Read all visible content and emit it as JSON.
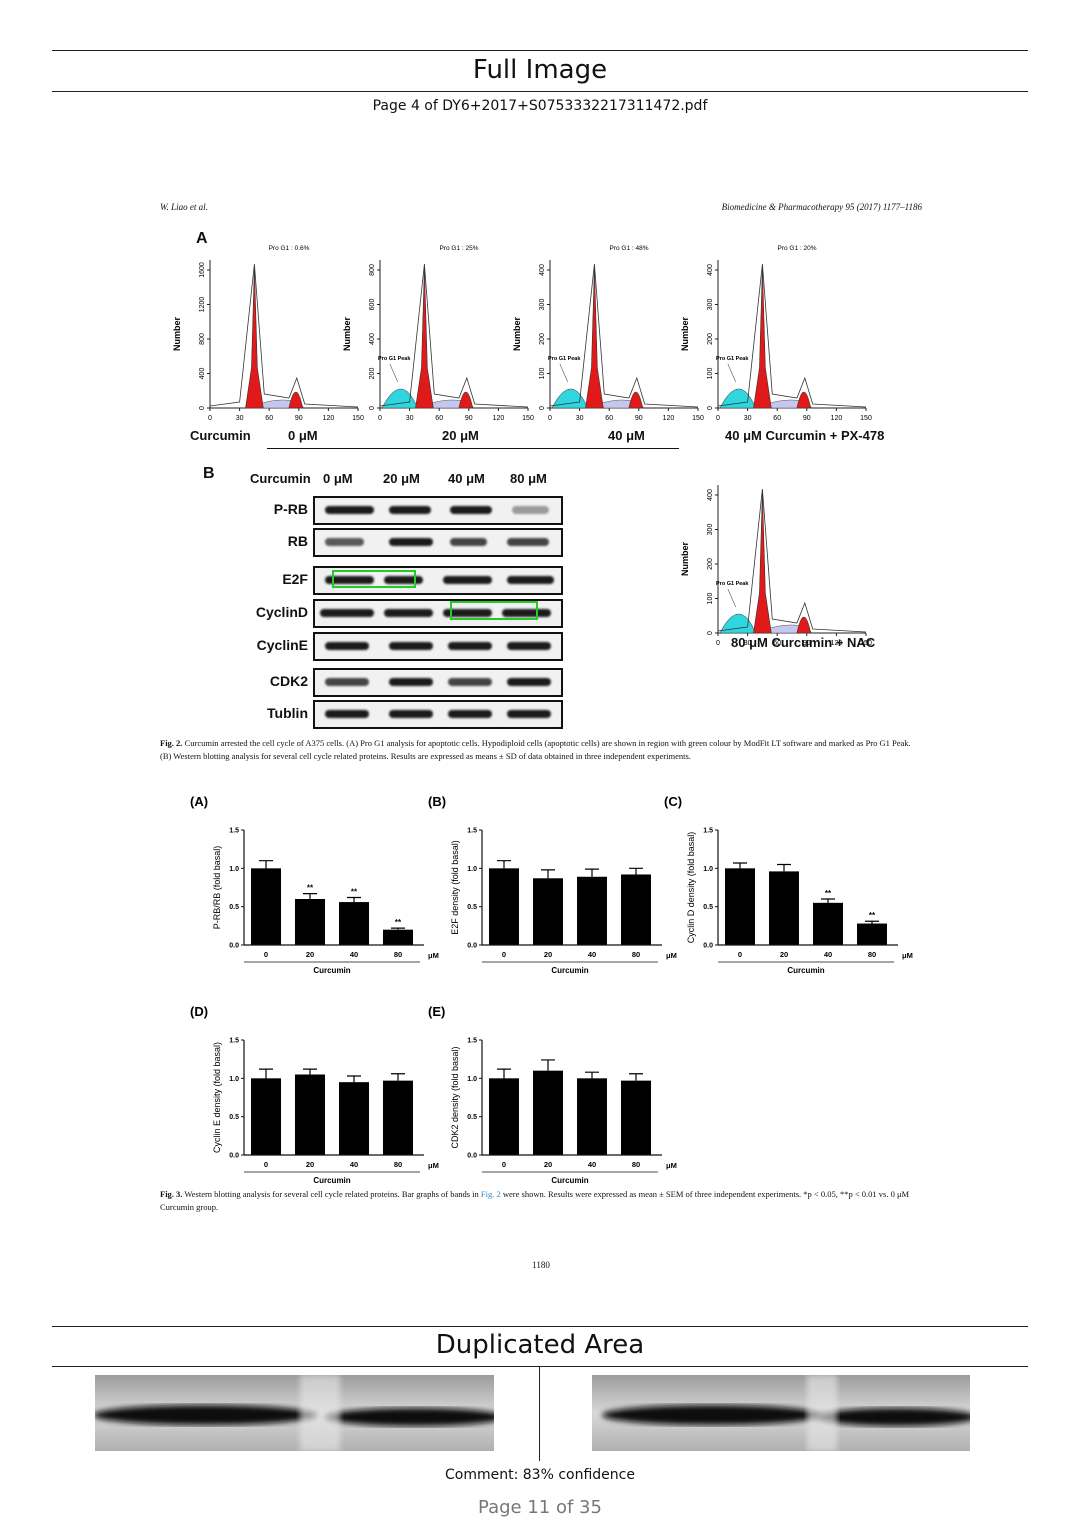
{
  "header": {
    "title": "Full Image",
    "subtitle": "Page 4 of DY6+2017+S0753332217311472.pdf"
  },
  "paper": {
    "running_head_left": "W. Liao et al.",
    "running_head_right": "Biomedicine & Pharmacotherapy 95 (2017) 1177–1186",
    "page_number": "1180",
    "fig2": {
      "panel_a_label": "A",
      "panel_b_label": "B",
      "curcumin_label": "Curcumin",
      "histograms": [
        {
          "pro_g1": "Pro G1 : 0.6%",
          "conc": "0 μM",
          "yticks": [
            "0",
            "400",
            "800",
            "1200",
            "1600"
          ],
          "has_peak": false
        },
        {
          "pro_g1": "Pro G1 : 25%",
          "conc": "20 μM",
          "yticks": [
            "0",
            "200",
            "400",
            "600",
            "800"
          ],
          "has_peak": true
        },
        {
          "pro_g1": "Pro G1 : 48%",
          "conc": "40 μM",
          "yticks": [
            "0",
            "100",
            "200",
            "300",
            "400"
          ],
          "has_peak": true
        },
        {
          "pro_g1": "Pro G1 : 20%",
          "conc": "40 μM Curcumin + PX-478",
          "yticks": [
            "0",
            "100",
            "200",
            "300",
            "400"
          ],
          "has_peak": true
        }
      ],
      "hist_nac": {
        "conc": "80 μM Curcumin + NAC",
        "yticks": [
          "0",
          "100",
          "200",
          "300",
          "400"
        ]
      },
      "hist_axis_label": "Number",
      "pro_g1_peak_label": "Pro G1 Peak",
      "xticks": [
        "0",
        "30",
        "60",
        "90",
        "120",
        "150"
      ],
      "blot_header": [
        "Curcumin",
        "0 μM",
        "20 μM",
        "40 μM",
        "80 μM"
      ],
      "blot_rows": [
        "P-RB",
        "RB",
        "E2F",
        "CyclinD",
        "CyclinE",
        "CDK2",
        "Tublin"
      ],
      "caption_bold": "Fig. 2.",
      "caption": "Curcumin arrested the cell cycle of A375 cells. (A) Pro G1 analysis for apoptotic cells. Hypodiploid cells (apoptotic cells) are shown in region with green colour by ModFit LT software and marked as Pro G1 Peak. (B) Western blotting analysis for several cell cycle related proteins. Results are expressed as means ± SD of data obtained in three independent experiments."
    },
    "fig3": {
      "caption_bold": "Fig. 3.",
      "caption_a": "Western blotting analysis for several cell cycle related proteins. Bar graphs of bands in ",
      "caption_link": "Fig. 2",
      "caption_b": " were shown. Results were expressed as mean ± SEM of three independent experiments. *p < 0.05, **p < 0.01 vs. 0 μM Curcumin group."
    }
  },
  "chart_data": [
    {
      "type": "bar",
      "panel": "(A)",
      "ylabel": "P-RB/RB (fold basal)",
      "xlabel": "Curcumin",
      "unit": "μM",
      "categories": [
        "0",
        "20",
        "40",
        "80"
      ],
      "values": [
        1.0,
        0.6,
        0.56,
        0.2
      ],
      "errors": [
        0.1,
        0.07,
        0.06,
        0.02
      ],
      "annotations": [
        "",
        "**",
        "**",
        "**"
      ],
      "ylim": [
        0,
        1.5
      ],
      "yticks": [
        "0.0",
        "0.5",
        "1.0",
        "1.5"
      ]
    },
    {
      "type": "bar",
      "panel": "(B)",
      "ylabel": "E2F density (fold basal)",
      "xlabel": "Curcumin",
      "unit": "μM",
      "categories": [
        "0",
        "20",
        "40",
        "80"
      ],
      "values": [
        1.0,
        0.87,
        0.89,
        0.92
      ],
      "errors": [
        0.1,
        0.11,
        0.1,
        0.08
      ],
      "annotations": [
        "",
        "",
        "",
        ""
      ],
      "ylim": [
        0,
        1.5
      ],
      "yticks": [
        "0.0",
        "0.5",
        "1.0",
        "1.5"
      ]
    },
    {
      "type": "bar",
      "panel": "(C)",
      "ylabel": "Cyclin D density (fold basal)",
      "xlabel": "Curcumin",
      "unit": "μM",
      "categories": [
        "0",
        "20",
        "40",
        "80"
      ],
      "values": [
        1.0,
        0.96,
        0.55,
        0.28
      ],
      "errors": [
        0.07,
        0.09,
        0.05,
        0.03
      ],
      "annotations": [
        "",
        "",
        "**",
        "**"
      ],
      "ylim": [
        0,
        1.5
      ],
      "yticks": [
        "0.0",
        "0.5",
        "1.0",
        "1.5"
      ]
    },
    {
      "type": "bar",
      "panel": "(D)",
      "ylabel": "Cyclin E density (fold basal)",
      "xlabel": "Curcumin",
      "unit": "μM",
      "categories": [
        "0",
        "20",
        "40",
        "80"
      ],
      "values": [
        1.0,
        1.05,
        0.95,
        0.97
      ],
      "errors": [
        0.12,
        0.07,
        0.08,
        0.09
      ],
      "annotations": [
        "",
        "",
        "",
        ""
      ],
      "ylim": [
        0,
        1.5
      ],
      "yticks": [
        "0.0",
        "0.5",
        "1.0",
        "1.5"
      ]
    },
    {
      "type": "bar",
      "panel": "(E)",
      "ylabel": "CDK2 density (fold basal)",
      "xlabel": "Curcumin",
      "unit": "μM",
      "categories": [
        "0",
        "20",
        "40",
        "80"
      ],
      "values": [
        1.0,
        1.1,
        1.0,
        0.97
      ],
      "errors": [
        0.12,
        0.14,
        0.08,
        0.09
      ],
      "annotations": [
        "",
        "",
        "",
        ""
      ],
      "ylim": [
        0,
        1.5
      ],
      "yticks": [
        "0.0",
        "0.5",
        "1.0",
        "1.5"
      ]
    }
  ],
  "duplicated": {
    "title": "Duplicated Area",
    "comment": "Comment: 83% confidence",
    "page_indicator": "Page 11 of 35"
  }
}
